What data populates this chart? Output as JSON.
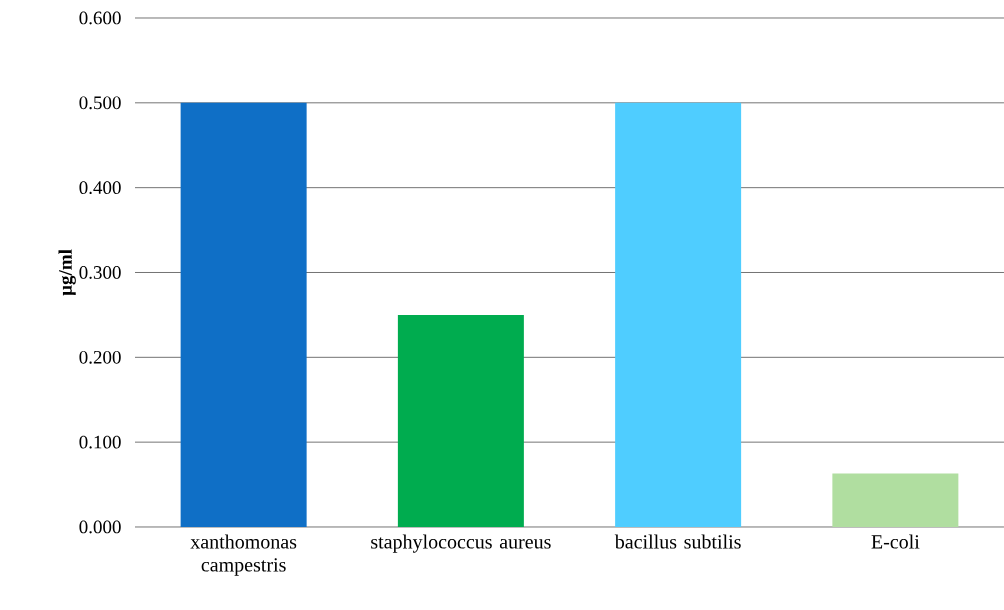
{
  "chart_data": {
    "type": "bar",
    "ylabel": "µg/ml",
    "categories": [
      "xanthomonas campestris",
      "staphylococcus aureus",
      "bacillus subtilis",
      "E-coli"
    ],
    "values": [
      0.5,
      0.25,
      0.5,
      0.063
    ],
    "colors": [
      "#0f6fc6",
      "#00ac4f",
      "#4fcdff",
      "#b0dea0"
    ],
    "ylim": [
      0,
      0.6
    ],
    "yticks": [
      {
        "value": 0,
        "label": "0.000"
      },
      {
        "value": 0.1,
        "label": "0.100"
      },
      {
        "value": 0.2,
        "label": "0.200"
      },
      {
        "value": 0.3,
        "label": "0.300"
      },
      {
        "value": 0.4,
        "label": "0.400"
      },
      {
        "value": 0.5,
        "label": "0.500"
      },
      {
        "value": 0.6,
        "label": "0.600"
      }
    ],
    "grid": "y"
  }
}
